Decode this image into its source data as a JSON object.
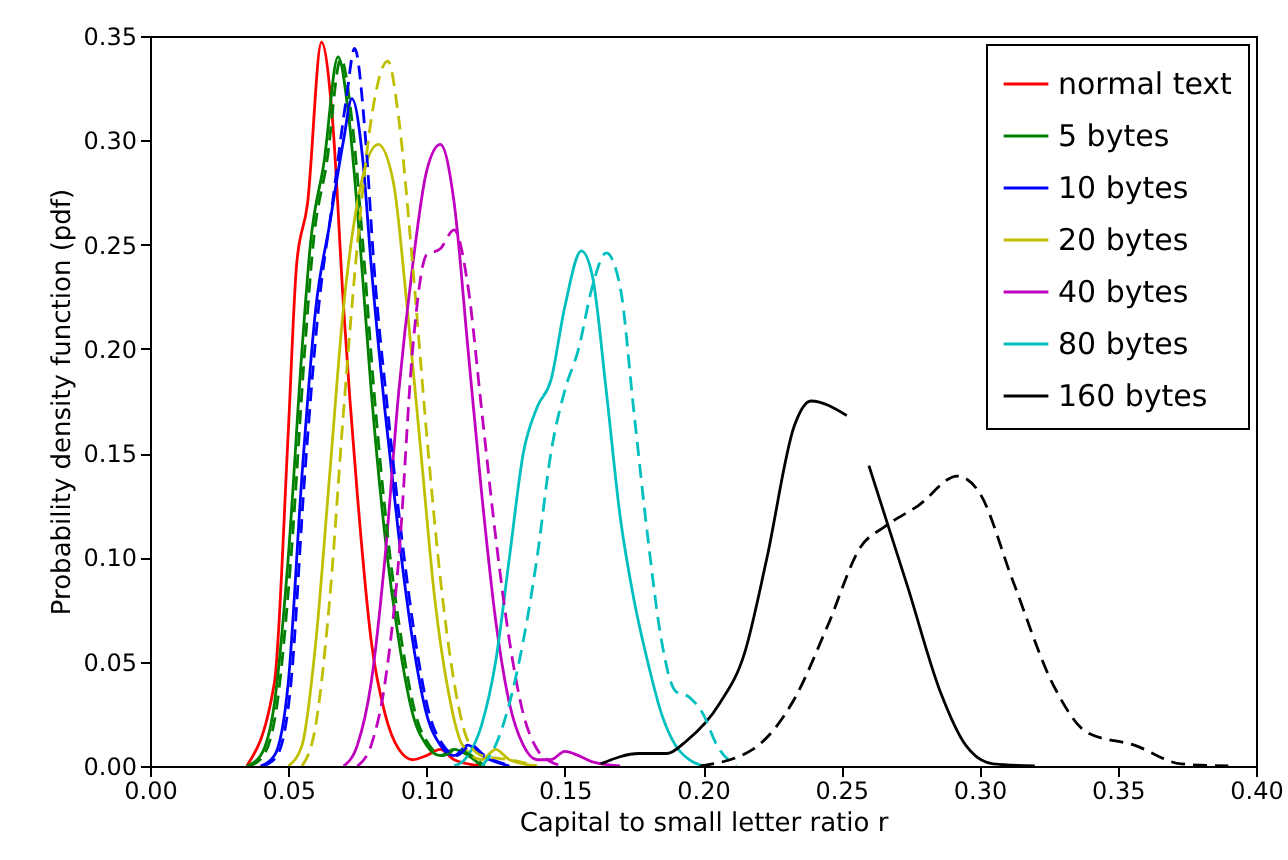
{
  "chart_data": {
    "type": "line",
    "xlabel": "Capital to small letter ratio r",
    "ylabel": "Probability density function (pdf)",
    "xlim": [
      0,
      0.4
    ],
    "xticks": [
      {
        "value": 0,
        "label": "0.00"
      },
      {
        "value": 0.05,
        "label": "0.05"
      },
      {
        "value": 0.1,
        "label": "0.10"
      },
      {
        "value": 0.15,
        "label": "0.15"
      },
      {
        "value": 0.2,
        "label": "0.20"
      },
      {
        "value": 0.25,
        "label": "0.25"
      },
      {
        "value": 0.3,
        "label": "0.30"
      },
      {
        "value": 0.35,
        "label": "0.35"
      },
      {
        "value": 0.4,
        "label": "0.40"
      }
    ],
    "ylim": [
      0,
      0.35
    ],
    "yticks": [
      {
        "value": 0,
        "label": "0.00"
      },
      {
        "value": 0.05,
        "label": "0.05"
      },
      {
        "value": 0.1,
        "label": "0.10"
      },
      {
        "value": 0.15,
        "label": "0.15"
      },
      {
        "value": 0.2,
        "label": "0.20"
      },
      {
        "value": 0.25,
        "label": "0.25"
      },
      {
        "value": 0.3,
        "label": "0.30"
      },
      {
        "value": 0.35,
        "label": "0.35"
      }
    ],
    "grid": false,
    "legend": "top right",
    "series": [
      {
        "name": "normal text",
        "color": "#ff0000",
        "x": [
          0.035,
          0.045,
          0.05,
          0.053,
          0.057,
          0.062,
          0.066,
          0.07,
          0.075,
          0.08,
          0.085,
          0.09,
          0.095,
          0.1,
          0.105,
          0.11,
          0.12
        ],
        "values": [
          0,
          0.04,
          0.16,
          0.24,
          0.27,
          0.347,
          0.31,
          0.22,
          0.13,
          0.06,
          0.025,
          0.008,
          0.003,
          0.005,
          0.008,
          0.003,
          0
        ]
      },
      {
        "name": "5 bytes",
        "color": "#008000",
        "x": [
          0.035,
          0.04,
          0.045,
          0.05,
          0.055,
          0.058,
          0.063,
          0.068,
          0.072,
          0.076,
          0.08,
          0.085,
          0.09,
          0.095,
          0.1,
          0.105,
          0.11,
          0.115,
          0.12
        ],
        "values": [
          0,
          0.005,
          0.03,
          0.1,
          0.2,
          0.25,
          0.29,
          0.34,
          0.31,
          0.25,
          0.18,
          0.11,
          0.06,
          0.025,
          0.01,
          0.005,
          0.008,
          0.005,
          0
        ]
      },
      {
        "name": "10 bytes",
        "color": "#0000ff",
        "x": [
          0.04,
          0.045,
          0.05,
          0.055,
          0.06,
          0.065,
          0.07,
          0.073,
          0.077,
          0.08,
          0.085,
          0.09,
          0.095,
          0.1,
          0.105,
          0.11,
          0.115,
          0.12,
          0.13
        ],
        "values": [
          0,
          0.005,
          0.04,
          0.14,
          0.22,
          0.26,
          0.3,
          0.32,
          0.29,
          0.24,
          0.17,
          0.11,
          0.06,
          0.025,
          0.01,
          0.005,
          0.01,
          0.005,
          0
        ]
      },
      {
        "name": "20 bytes",
        "color": "#bfbf00",
        "x": [
          0.05,
          0.055,
          0.06,
          0.065,
          0.07,
          0.075,
          0.0825,
          0.088,
          0.093,
          0.098,
          0.103,
          0.108,
          0.113,
          0.12,
          0.125,
          0.13,
          0.14
        ],
        "values": [
          0,
          0.01,
          0.06,
          0.14,
          0.22,
          0.27,
          0.298,
          0.28,
          0.22,
          0.15,
          0.08,
          0.035,
          0.01,
          0.003,
          0.008,
          0.003,
          0
        ]
      },
      {
        "name": "40 bytes",
        "color": "#bf00bf",
        "x": [
          0.07,
          0.075,
          0.08,
          0.085,
          0.09,
          0.095,
          0.1,
          0.105,
          0.11,
          0.115,
          0.12,
          0.125,
          0.13,
          0.135,
          0.14,
          0.145,
          0.15,
          0.155,
          0.16,
          0.17
        ],
        "values": [
          0,
          0.01,
          0.04,
          0.1,
          0.18,
          0.24,
          0.285,
          0.298,
          0.27,
          0.2,
          0.13,
          0.07,
          0.03,
          0.01,
          0.003,
          0.003,
          0.007,
          0.005,
          0.002,
          0
        ]
      },
      {
        "name": "80 bytes",
        "color": "#00bfbf",
        "x": [
          0.11,
          0.115,
          0.12,
          0.125,
          0.13,
          0.135,
          0.14,
          0.145,
          0.15,
          0.156,
          0.16,
          0.165,
          0.17,
          0.175,
          0.18,
          0.185,
          0.19,
          0.195,
          0.2
        ],
        "values": [
          0,
          0.005,
          0.02,
          0.05,
          0.1,
          0.15,
          0.172,
          0.185,
          0.22,
          0.247,
          0.235,
          0.18,
          0.12,
          0.08,
          0.05,
          0.025,
          0.01,
          0.003,
          0
        ]
      },
      {
        "name": "160 bytes",
        "color": "#000000",
        "x": [
          0.163,
          0.177,
          0.187,
          0.194,
          0.206,
          0.215,
          0.223,
          0.233,
          0.239,
          0.252,
          0.256,
          0.26,
          0.274,
          0.286,
          0.295,
          0.305,
          0.32
        ],
        "values": [
          0.001,
          0.006,
          0.006,
          0.012,
          0.03,
          0.054,
          0.099,
          0.163,
          0.175,
          0.168,
          null,
          0.144,
          0.086,
          0.035,
          0.01,
          0.001,
          0
        ]
      },
      {
        "color": "#008000",
        "line_style": "dashed",
        "x": [
          0.036,
          0.041,
          0.046,
          0.051,
          0.056,
          0.059,
          0.064,
          0.069,
          0.073,
          0.077,
          0.081,
          0.086,
          0.091,
          0.096,
          0.101,
          0.106,
          0.111,
          0.116,
          0.121
        ],
        "values": [
          0,
          0.005,
          0.03,
          0.1,
          0.2,
          0.25,
          0.29,
          0.339,
          0.31,
          0.25,
          0.18,
          0.11,
          0.06,
          0.025,
          0.01,
          0.005,
          0.008,
          0.005,
          0
        ]
      },
      {
        "color": "#0000ff",
        "line_style": "dashed",
        "x": [
          0.041,
          0.046,
          0.051,
          0.056,
          0.061,
          0.066,
          0.071,
          0.074,
          0.078,
          0.081,
          0.086,
          0.091,
          0.096,
          0.101,
          0.106,
          0.111,
          0.116,
          0.121,
          0.131
        ],
        "values": [
          0,
          0.005,
          0.04,
          0.14,
          0.22,
          0.27,
          0.32,
          0.344,
          0.3,
          0.24,
          0.17,
          0.11,
          0.06,
          0.025,
          0.01,
          0.005,
          0.01,
          0.005,
          0
        ]
      },
      {
        "color": "#bfbf00",
        "line_style": "dashed",
        "x": [
          0.055,
          0.06,
          0.065,
          0.07,
          0.075,
          0.08,
          0.086,
          0.09,
          0.095,
          0.1,
          0.105,
          0.11,
          0.115,
          0.12,
          0.13,
          0.14
        ],
        "values": [
          0,
          0.02,
          0.08,
          0.17,
          0.25,
          0.31,
          0.338,
          0.31,
          0.24,
          0.16,
          0.09,
          0.04,
          0.012,
          0.005,
          0.003,
          0
        ]
      },
      {
        "color": "#bf00bf",
        "line_style": "dashed",
        "x": [
          0.075,
          0.08,
          0.085,
          0.09,
          0.095,
          0.1,
          0.105,
          0.11,
          0.115,
          0.12,
          0.125,
          0.13,
          0.135,
          0.14,
          0.145,
          0.15
        ],
        "values": [
          0,
          0.01,
          0.04,
          0.1,
          0.2,
          0.245,
          0.248,
          0.257,
          0.23,
          0.17,
          0.11,
          0.06,
          0.025,
          0.008,
          0.002,
          0
        ]
      },
      {
        "color": "#00bfbf",
        "line_style": "dashed",
        "x": [
          0.12,
          0.125,
          0.13,
          0.135,
          0.14,
          0.145,
          0.15,
          0.155,
          0.16,
          0.165,
          0.17,
          0.175,
          0.18,
          0.185,
          0.19,
          0.195,
          0.2,
          0.205,
          0.212
        ],
        "values": [
          0,
          0.01,
          0.03,
          0.06,
          0.1,
          0.15,
          0.18,
          0.2,
          0.23,
          0.246,
          0.23,
          0.17,
          0.11,
          0.06,
          0.036,
          0.033,
          0.025,
          0.01,
          0
        ]
      },
      {
        "color": "#000000",
        "line_style": "dashed",
        "x": [
          0.199,
          0.218,
          0.233,
          0.245,
          0.257,
          0.266,
          0.278,
          0.292,
          0.3,
          0.312,
          0.327,
          0.339,
          0.356,
          0.373,
          0.39
        ],
        "values": [
          0,
          0.008,
          0.032,
          0.067,
          0.105,
          0.115,
          0.125,
          0.139,
          0.131,
          0.089,
          0.038,
          0.016,
          0.01,
          0.001,
          0
        ]
      }
    ]
  }
}
